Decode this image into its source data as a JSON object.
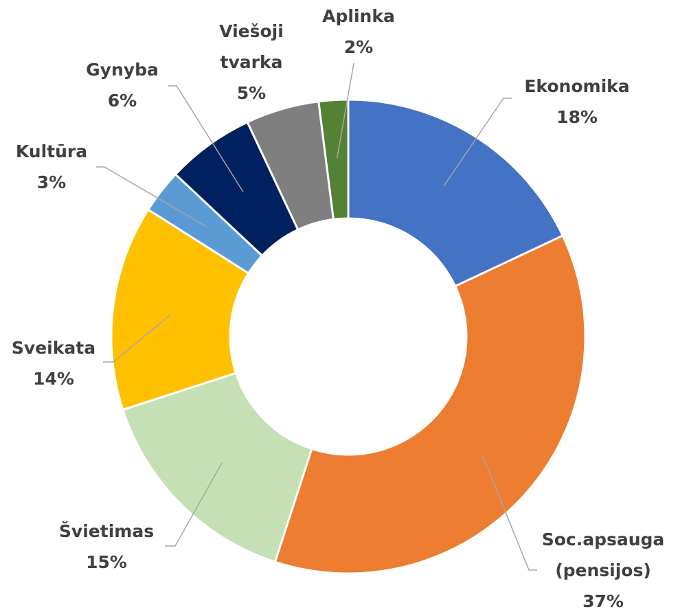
{
  "chart_data": {
    "type": "donut",
    "categories": [
      "Ekonomika",
      "Soc.apsauga (pensijos)",
      "Švietimas",
      "Sveikata",
      "Kultūra",
      "Gynyba",
      "Viešoji tvarka",
      "Aplinka"
    ],
    "values": [
      18,
      37,
      15,
      14,
      3,
      6,
      5,
      2
    ],
    "value_labels": [
      "18%",
      "37%",
      "15%",
      "14%",
      "3%",
      "6%",
      "5%",
      "2%"
    ],
    "colors": [
      "#4472c4",
      "#ed7d31",
      "#c5e0b4",
      "#ffc000",
      "#5b9bd5",
      "#002060",
      "#7f7f7f",
      "#548235"
    ]
  }
}
